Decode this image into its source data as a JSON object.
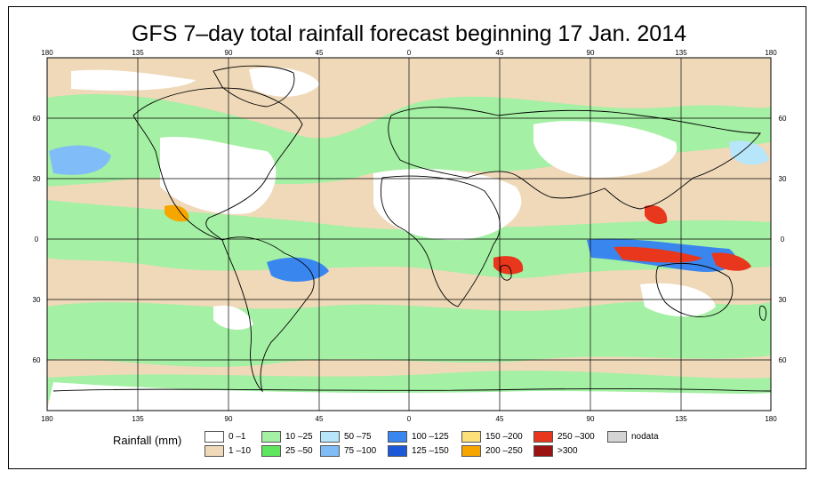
{
  "title": "GFS 7–day total rainfall forecast beginning 17 Jan. 2014",
  "colors": {
    "ocean_dry": "#efd9b9",
    "light": "#ffffff",
    "band": "#a4f0a4",
    "land_outline": "#000000",
    "grid": "#000000",
    "blue_low": "#a8d8f8",
    "blue_mid": "#4f8ef2",
    "heavy": "#d93b1f",
    "orange": "#f5a300"
  },
  "axis": {
    "top_lon_labels": [
      "180",
      "135",
      "90",
      "45",
      "0",
      "45",
      "90",
      "135",
      "180"
    ],
    "bottom_lon_labels": [
      "180",
      "135",
      "90",
      "45",
      "0",
      "45",
      "90",
      "135",
      "180"
    ],
    "left_lat_labels": [
      "60",
      "30",
      "0",
      "30",
      "60"
    ],
    "right_lat_labels": [
      "60",
      "30",
      "0",
      "30",
      "60"
    ]
  },
  "legend": {
    "title": "Rainfall (mm)",
    "items": [
      {
        "label": "0 –1",
        "color": "#ffffff"
      },
      {
        "label": "1 –10",
        "color": "#efd9b9"
      },
      {
        "label": "10 –25",
        "color": "#a4f0a4"
      },
      {
        "label": "25 –50",
        "color": "#5ee65e"
      },
      {
        "label": "50 –75",
        "color": "#b7e6fa"
      },
      {
        "label": "75 –100",
        "color": "#80bcf8"
      },
      {
        "label": "100 –125",
        "color": "#3a86ef"
      },
      {
        "label": "125 –150",
        "color": "#1b58d8"
      },
      {
        "label": "150 –200",
        "color": "#fde07a"
      },
      {
        "label": "200 –250",
        "color": "#f7a600"
      },
      {
        "label": "250 –300",
        "color": "#e8371c"
      },
      {
        "label": ">300",
        "color": "#9b1212"
      },
      {
        "label": "nodata",
        "color": "#d4d4d4"
      }
    ]
  }
}
